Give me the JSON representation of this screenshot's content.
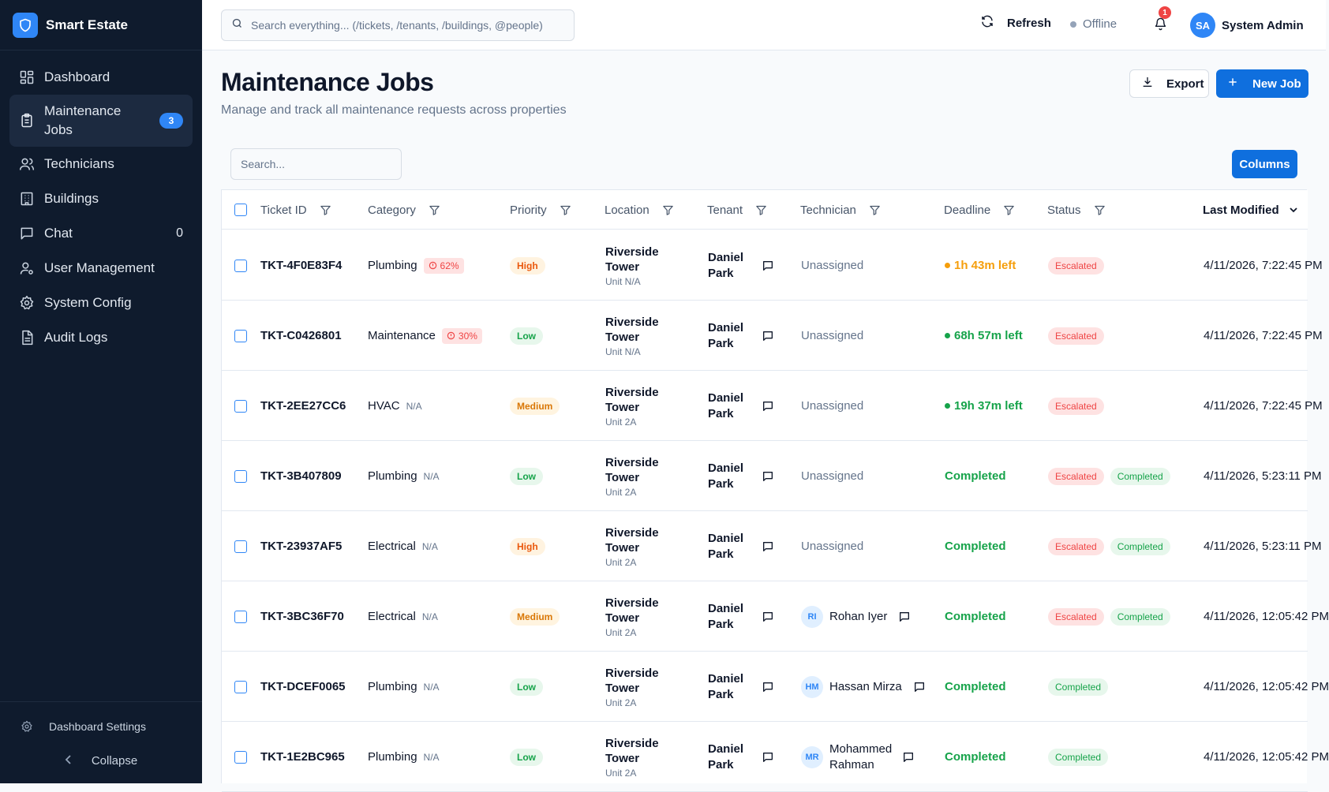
{
  "app": {
    "name": "Smart Estate"
  },
  "sidebar": {
    "items": [
      {
        "label": "Dashboard",
        "icon": "dashboard-icon"
      },
      {
        "label": "Maintenance Jobs",
        "icon": "clipboard-icon",
        "badge": "3"
      },
      {
        "label": "Technicians",
        "icon": "users-icon"
      },
      {
        "label": "Buildings",
        "icon": "building-icon"
      },
      {
        "label": "Chat",
        "icon": "chat-icon",
        "count": "0"
      },
      {
        "label": "User Management",
        "icon": "user-cog-icon"
      },
      {
        "label": "System Config",
        "icon": "gear-icon"
      },
      {
        "label": "Audit Logs",
        "icon": "document-icon"
      }
    ],
    "settings_label": "Dashboard Settings",
    "collapse_label": "Collapse"
  },
  "topbar": {
    "search_placeholder": "Search everything... (/tickets, /tenants, /buildings, @people)",
    "refresh_label": "Refresh",
    "status_label": "Offline",
    "notification_count": "1",
    "user_initials": "SA",
    "user_name": "System Admin"
  },
  "page": {
    "title": "Maintenance Jobs",
    "subtitle": "Manage and track all maintenance requests across properties",
    "export_label": "Export",
    "new_job_label": "New Job",
    "table_search_placeholder": "Search...",
    "columns_label": "Columns"
  },
  "table": {
    "headers": [
      "Ticket ID",
      "Category",
      "Priority",
      "Location",
      "Tenant",
      "Technician",
      "Deadline",
      "Status",
      "Last Modified"
    ],
    "rows": [
      {
        "ticket": "TKT-4F0E83F4",
        "category": "Plumbing",
        "risk": "62%",
        "priority": "High",
        "building": "Riverside Tower",
        "unit": "Unit N/A",
        "tenant": "Daniel Park",
        "technician": "Unassigned",
        "tech_initials": "",
        "deadline": "1h 43m left",
        "deadline_tone": "orange",
        "statuses": [
          "Escalated"
        ],
        "modified": "4/11/2026, 7:22:45 PM"
      },
      {
        "ticket": "TKT-C0426801",
        "category": "Maintenance",
        "risk": "30%",
        "priority": "Low",
        "building": "Riverside Tower",
        "unit": "Unit N/A",
        "tenant": "Daniel Park",
        "technician": "Unassigned",
        "tech_initials": "",
        "deadline": "68h 57m left",
        "deadline_tone": "green",
        "statuses": [
          "Escalated"
        ],
        "modified": "4/11/2026, 7:22:45 PM"
      },
      {
        "ticket": "TKT-2EE27CC6",
        "category": "HVAC",
        "risk": "N/A",
        "priority": "Medium",
        "building": "Riverside Tower",
        "unit": "Unit 2A",
        "tenant": "Daniel Park",
        "technician": "Unassigned",
        "tech_initials": "",
        "deadline": "19h 37m left",
        "deadline_tone": "green",
        "statuses": [
          "Escalated"
        ],
        "modified": "4/11/2026, 7:22:45 PM"
      },
      {
        "ticket": "TKT-3B407809",
        "category": "Plumbing",
        "risk": "N/A",
        "priority": "Low",
        "building": "Riverside Tower",
        "unit": "Unit 2A",
        "tenant": "Daniel Park",
        "technician": "Unassigned",
        "tech_initials": "",
        "deadline": "Completed",
        "deadline_tone": "completed",
        "statuses": [
          "Escalated",
          "Completed"
        ],
        "modified": "4/11/2026, 5:23:11 PM"
      },
      {
        "ticket": "TKT-23937AF5",
        "category": "Electrical",
        "risk": "N/A",
        "priority": "High",
        "building": "Riverside Tower",
        "unit": "Unit 2A",
        "tenant": "Daniel Park",
        "technician": "Unassigned",
        "tech_initials": "",
        "deadline": "Completed",
        "deadline_tone": "completed",
        "statuses": [
          "Escalated",
          "Completed"
        ],
        "modified": "4/11/2026, 5:23:11 PM"
      },
      {
        "ticket": "TKT-3BC36F70",
        "category": "Electrical",
        "risk": "N/A",
        "priority": "Medium",
        "building": "Riverside Tower",
        "unit": "Unit 2A",
        "tenant": "Daniel Park",
        "technician": "Rohan Iyer",
        "tech_initials": "RI",
        "deadline": "Completed",
        "deadline_tone": "completed",
        "statuses": [
          "Escalated",
          "Completed"
        ],
        "modified": "4/11/2026, 12:05:42 PM"
      },
      {
        "ticket": "TKT-DCEF0065",
        "category": "Plumbing",
        "risk": "N/A",
        "priority": "Low",
        "building": "Riverside Tower",
        "unit": "Unit 2A",
        "tenant": "Daniel Park",
        "technician": "Hassan Mirza",
        "tech_initials": "HM",
        "deadline": "Completed",
        "deadline_tone": "completed",
        "statuses": [
          "Completed"
        ],
        "modified": "4/11/2026, 12:05:42 PM"
      },
      {
        "ticket": "TKT-1E2BC965",
        "category": "Plumbing",
        "risk": "N/A",
        "priority": "Low",
        "building": "Riverside Tower",
        "unit": "Unit 2A",
        "tenant": "Daniel Park",
        "technician": "Mohammed Rahman",
        "tech_initials": "MR",
        "deadline": "Completed",
        "deadline_tone": "completed",
        "statuses": [
          "Completed"
        ],
        "modified": "4/11/2026, 12:05:42 PM"
      }
    ]
  },
  "colors": {
    "accent": "#0f6fde",
    "sidebar_bg": "#0f1b2d",
    "danger": "#ef4444",
    "success": "#16a34a",
    "warning": "#f59e0b"
  }
}
